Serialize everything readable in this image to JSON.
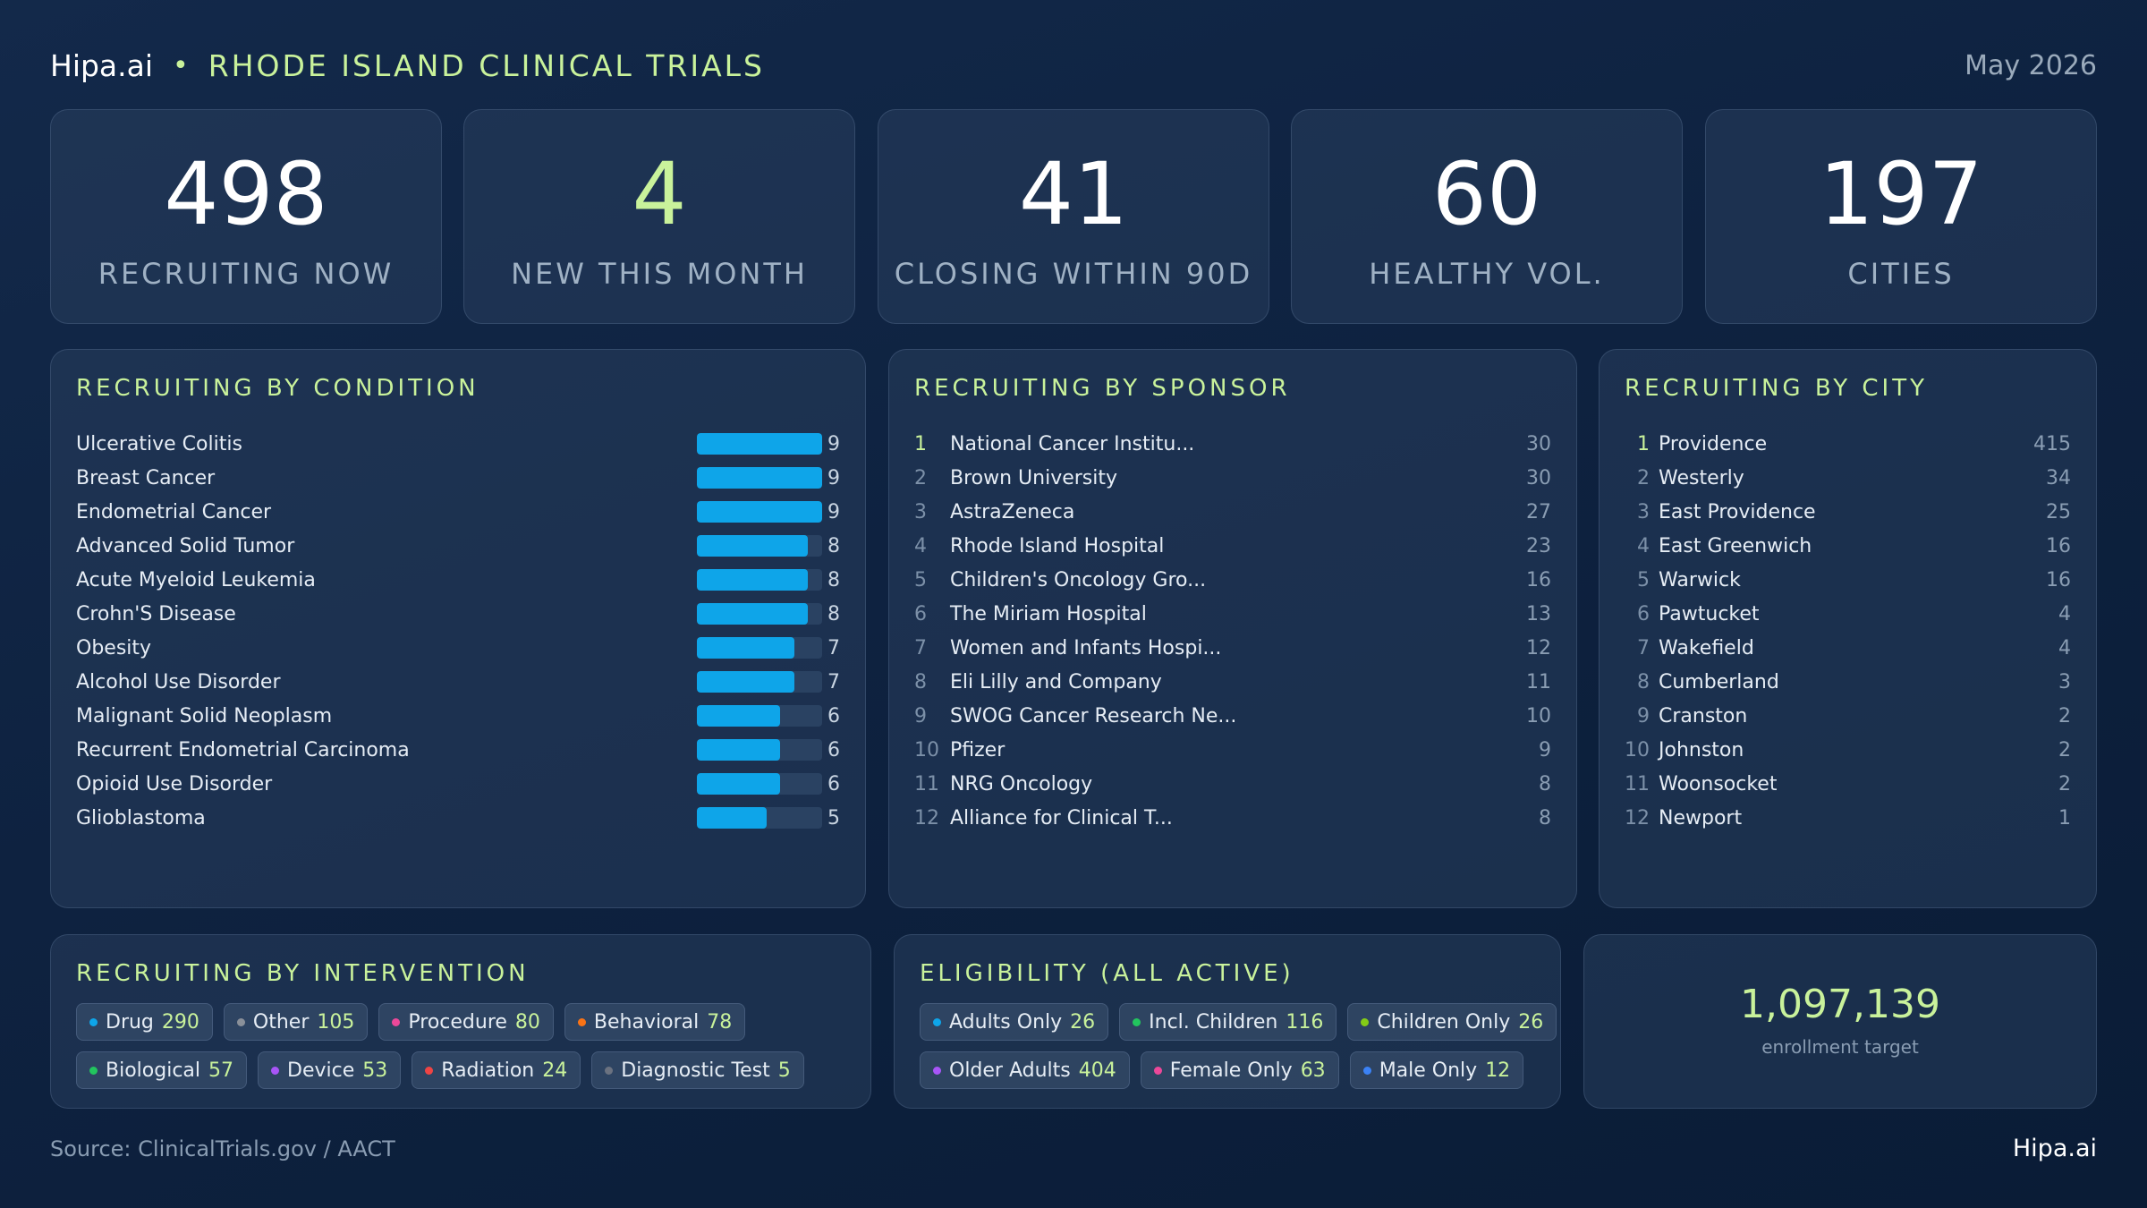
{
  "header": {
    "brand": "Hipa.ai",
    "separator": "•",
    "title": "RHODE ISLAND CLINICAL TRIALS",
    "date": "May 2026"
  },
  "kpis": [
    {
      "value": "498",
      "label": "RECRUITING NOW"
    },
    {
      "value": "4",
      "label": "NEW THIS MONTH"
    },
    {
      "value": "41",
      "label": "CLOSING WITHIN 90D"
    },
    {
      "value": "60",
      "label": "HEALTHY VOL."
    },
    {
      "value": "197",
      "label": "CITIES"
    }
  ],
  "condition": {
    "title": "RECRUITING BY CONDITION",
    "max": 9,
    "rows": [
      {
        "name": "Ulcerative Colitis",
        "count": 9
      },
      {
        "name": "Breast Cancer",
        "count": 9
      },
      {
        "name": "Endometrial Cancer",
        "count": 9
      },
      {
        "name": "Advanced Solid Tumor",
        "count": 8
      },
      {
        "name": "Acute Myeloid Leukemia",
        "count": 8
      },
      {
        "name": "Crohn'S Disease",
        "count": 8
      },
      {
        "name": "Obesity",
        "count": 7
      },
      {
        "name": "Alcohol Use Disorder",
        "count": 7
      },
      {
        "name": "Malignant Solid Neoplasm",
        "count": 6
      },
      {
        "name": "Recurrent Endometrial Carcinoma",
        "count": 6
      },
      {
        "name": "Opioid Use Disorder",
        "count": 6
      },
      {
        "name": "Glioblastoma",
        "count": 5
      }
    ]
  },
  "sponsor": {
    "title": "RECRUITING BY SPONSOR",
    "rows": [
      {
        "rank": "1",
        "name": "National Cancer Institu...",
        "count": "30"
      },
      {
        "rank": "2",
        "name": "Brown University",
        "count": "30"
      },
      {
        "rank": "3",
        "name": "AstraZeneca",
        "count": "27"
      },
      {
        "rank": "4",
        "name": "Rhode Island Hospital",
        "count": "23"
      },
      {
        "rank": "5",
        "name": "Children's Oncology Gro...",
        "count": "16"
      },
      {
        "rank": "6",
        "name": "The Miriam Hospital",
        "count": "13"
      },
      {
        "rank": "7",
        "name": "Women and Infants Hospi...",
        "count": "12"
      },
      {
        "rank": "8",
        "name": "Eli Lilly and Company",
        "count": "11"
      },
      {
        "rank": "9",
        "name": "SWOG Cancer Research Ne...",
        "count": "10"
      },
      {
        "rank": "10",
        "name": "Pfizer",
        "count": "9"
      },
      {
        "rank": "11",
        "name": "NRG Oncology",
        "count": "8"
      },
      {
        "rank": "12",
        "name": "Alliance for Clinical T...",
        "count": "8"
      }
    ]
  },
  "city": {
    "title": "RECRUITING BY CITY",
    "rows": [
      {
        "rank": "1",
        "name": "Providence",
        "count": "415"
      },
      {
        "rank": "2",
        "name": "Westerly",
        "count": "34"
      },
      {
        "rank": "3",
        "name": "East Providence",
        "count": "25"
      },
      {
        "rank": "4",
        "name": "East Greenwich",
        "count": "16"
      },
      {
        "rank": "5",
        "name": "Warwick",
        "count": "16"
      },
      {
        "rank": "6",
        "name": "Pawtucket",
        "count": "4"
      },
      {
        "rank": "7",
        "name": "Wakefield",
        "count": "4"
      },
      {
        "rank": "8",
        "name": "Cumberland",
        "count": "3"
      },
      {
        "rank": "9",
        "name": "Cranston",
        "count": "2"
      },
      {
        "rank": "10",
        "name": "Johnston",
        "count": "2"
      },
      {
        "rank": "11",
        "name": "Woonsocket",
        "count": "2"
      },
      {
        "rank": "12",
        "name": "Newport",
        "count": "1"
      }
    ]
  },
  "intervention": {
    "title": "RECRUITING BY INTERVENTION",
    "rows": [
      [
        {
          "label": "Drug",
          "value": "290",
          "color": "#0ea5e9"
        },
        {
          "label": "Other",
          "value": "105",
          "color": "#8a9099"
        },
        {
          "label": "Procedure",
          "value": "80",
          "color": "#ec4899"
        },
        {
          "label": "Behavioral",
          "value": "78",
          "color": "#f97316"
        }
      ],
      [
        {
          "label": "Biological",
          "value": "57",
          "color": "#22c55e"
        },
        {
          "label": "Device",
          "value": "53",
          "color": "#a855f7"
        },
        {
          "label": "Radiation",
          "value": "24",
          "color": "#ef4444"
        },
        {
          "label": "Diagnostic Test",
          "value": "5",
          "color": "#6b7280"
        }
      ]
    ]
  },
  "eligibility": {
    "title": "ELIGIBILITY (ALL ACTIVE)",
    "rows": [
      [
        {
          "label": "Adults Only",
          "value": "26",
          "color": "#0ea5e9"
        },
        {
          "label": "Incl. Children",
          "value": "116",
          "color": "#22c55e"
        },
        {
          "label": "Children Only",
          "value": "26",
          "color": "#84cc16"
        }
      ],
      [
        {
          "label": "Older Adults",
          "value": "404",
          "color": "#a855f7"
        },
        {
          "label": "Female Only",
          "value": "63",
          "color": "#ec4899"
        },
        {
          "label": "Male Only",
          "value": "12",
          "color": "#3b82f6"
        }
      ]
    ]
  },
  "enrollment": {
    "value": "1,097,139",
    "label": "enrollment target"
  },
  "footer": {
    "source": "Source: ClinicalTrials.gov / AACT",
    "brand": "Hipa.ai"
  }
}
